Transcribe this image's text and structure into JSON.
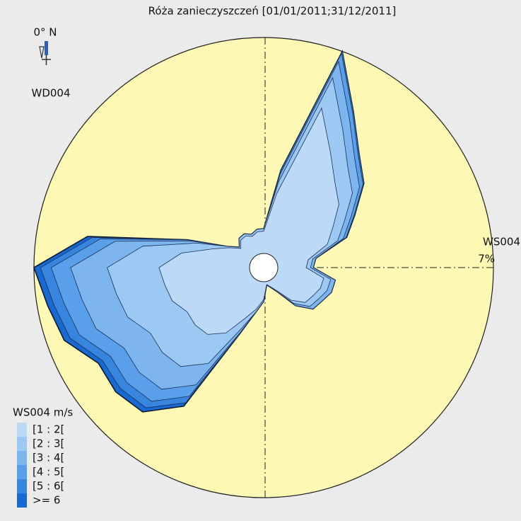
{
  "chart_data": {
    "type": "wind_rose",
    "title": "Róża zanieczyszczeń [01/01/2011;31/12/2011]",
    "direction_label": "WD004",
    "north_label": "0° N",
    "radial_label": "WS004",
    "legend_title": "WS004 m/s",
    "directions": [
      0,
      10,
      20,
      30,
      40,
      50,
      60,
      70,
      80,
      90,
      100,
      110,
      120,
      130,
      140,
      150,
      160,
      170,
      180,
      190,
      200,
      210,
      220,
      230,
      240,
      250,
      260,
      270,
      280,
      290,
      300,
      310,
      320,
      330,
      340,
      350
    ],
    "rlim": [
      0,
      7
    ],
    "rticks": [
      {
        "value": 7,
        "label": "7%"
      }
    ],
    "series": [
      {
        "name": "[1 : 2[",
        "color": "#bcdaf7",
        "values": [
          0.72,
          1.98,
          5.04,
          3.87,
          3.14,
          2.73,
          2.13,
          1.74,
          1.01,
          0.92,
          1.52,
          1.5,
          1.38,
          1.3,
          0.92,
          0.41,
          0.21,
          0.1,
          0.58,
          0.91,
          1.29,
          1.99,
          2.37,
          2.44,
          2.41,
          2.7,
          2.8,
          2.94,
          2.25,
          1.31,
          0.83,
          0.51,
          0.7,
          0.72,
          0.62,
          0.72
        ]
      },
      {
        "name": "[2 : 3[",
        "color": "#9cc9f4",
        "values": [
          0.08,
          0.41,
          1.05,
          0.81,
          0.65,
          0.57,
          0.44,
          0.36,
          0.15,
          0.14,
          0.23,
          0.23,
          0.21,
          0.2,
          0.14,
          0.05,
          0.02,
          0.01,
          0.06,
          0.1,
          0.35,
          1.14,
          1.36,
          1.39,
          1.38,
          1.54,
          1.6,
          1.68,
          1.28,
          0.55,
          0.09,
          0.06,
          0.08,
          0.08,
          0.07,
          0.08
        ]
      },
      {
        "name": "[3 : 4[",
        "color": "#7db5ef",
        "values": [
          0,
          0.22,
          0.56,
          0.43,
          0.35,
          0.3,
          0.24,
          0.19,
          0.1,
          0.09,
          0.15,
          0.15,
          0.13,
          0.13,
          0.09,
          0,
          0,
          0,
          0,
          0,
          0.15,
          0.8,
          0.96,
          0.99,
          0.98,
          1.09,
          1.13,
          1.19,
          0.91,
          0.22,
          0,
          0,
          0,
          0,
          0,
          0
        ]
      },
      {
        "name": "[4 : 5[",
        "color": "#5a9fe9",
        "values": [
          0,
          0.11,
          0.28,
          0.21,
          0.17,
          0.15,
          0.12,
          0.1,
          0,
          0,
          0,
          0,
          0,
          0,
          0,
          0,
          0,
          0,
          0,
          0,
          0.05,
          0.43,
          0.51,
          0.52,
          0.52,
          0.58,
          0.6,
          0.63,
          0.48,
          0.1,
          0,
          0,
          0,
          0,
          0,
          0
        ]
      },
      {
        "name": "[5 : 6[",
        "color": "#3885de",
        "values": [
          0,
          0.03,
          0.07,
          0.05,
          0.05,
          0.04,
          0.03,
          0.02,
          0,
          0,
          0,
          0,
          0,
          0,
          0,
          0,
          0,
          0,
          0,
          0,
          0,
          0.24,
          0.28,
          0.29,
          0.29,
          0.32,
          0.33,
          0.35,
          0.27,
          0,
          0,
          0,
          0,
          0,
          0,
          0
        ]
      },
      {
        "name": ">= 6",
        "color": "#186ad2",
        "values": [
          0,
          0,
          0,
          0,
          0,
          0,
          0,
          0,
          0,
          0,
          0,
          0,
          0,
          0,
          0,
          0,
          0,
          0,
          0,
          0,
          0,
          0.13,
          0.17,
          0.18,
          0.16,
          0.2,
          0.2,
          0.21,
          0.16,
          0,
          0,
          0,
          0,
          0,
          0,
          0
        ]
      }
    ]
  }
}
